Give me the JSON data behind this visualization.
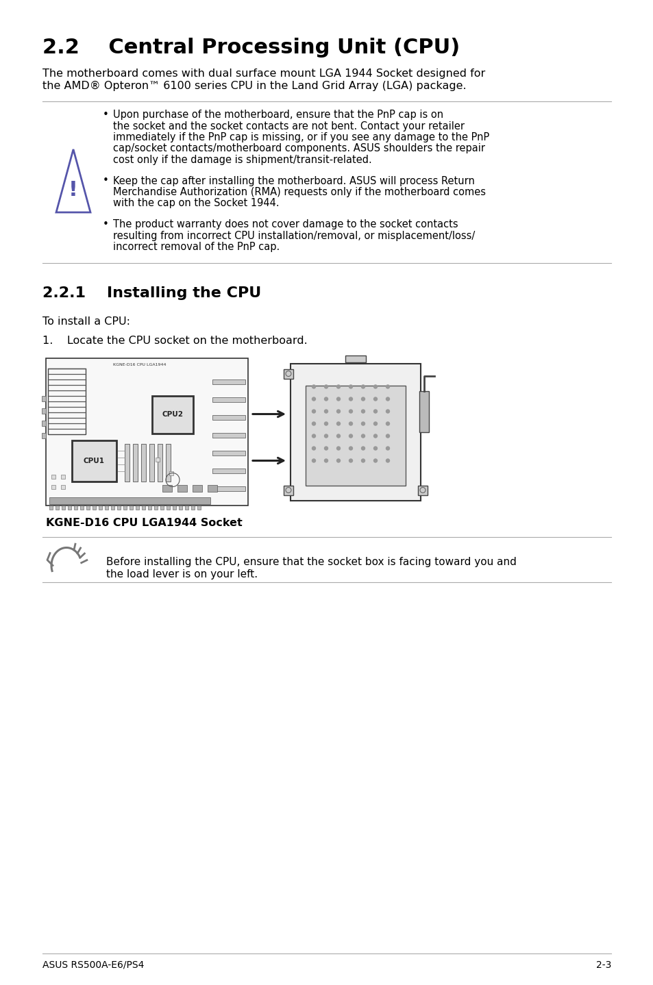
{
  "title": "2.2    Central Processing Unit (CPU)",
  "subtitle_line1": "The motherboard comes with dual surface mount LGA 1944 Socket designed for",
  "subtitle_line2": "the AMD® Opteron™ 6100 series CPU in the Land Grid Array (LGA) package.",
  "bullet1_lines": [
    "Upon purchase of the motherboard, ensure that the PnP cap is on",
    "the socket and the socket contacts are not bent. Contact your retailer",
    "immediately if the PnP cap is missing, or if you see any damage to the PnP",
    "cap/socket contacts/motherboard components. ASUS shoulders the repair",
    "cost only if the damage is shipment/transit-related."
  ],
  "bullet2_lines": [
    "Keep the cap after installing the motherboard. ASUS will process Return",
    "Merchandise Authorization (RMA) requests only if the motherboard comes",
    "with the cap on the Socket 1944."
  ],
  "bullet3_lines": [
    "The product warranty does not cover damage to the socket contacts",
    "resulting from incorrect CPU installation/removal, or misplacement/loss/",
    "incorrect removal of the PnP cap."
  ],
  "section_title": "2.2.1    Installing the CPU",
  "install_intro": "To install a CPU:",
  "step1": "1.    Locate the CPU socket on the motherboard.",
  "img_caption": "KGNE-D16 CPU LGA1944 Socket",
  "note_line1": "Before installing the CPU, ensure that the socket box is facing toward you and",
  "note_line2": "the load lever is on your left.",
  "footer_left": "ASUS RS500A-E6/PS4",
  "footer_right": "2-3",
  "bg_color": "#ffffff",
  "text_color": "#000000",
  "line_color": "#aaaaaa",
  "warn_color": "#5555aa"
}
